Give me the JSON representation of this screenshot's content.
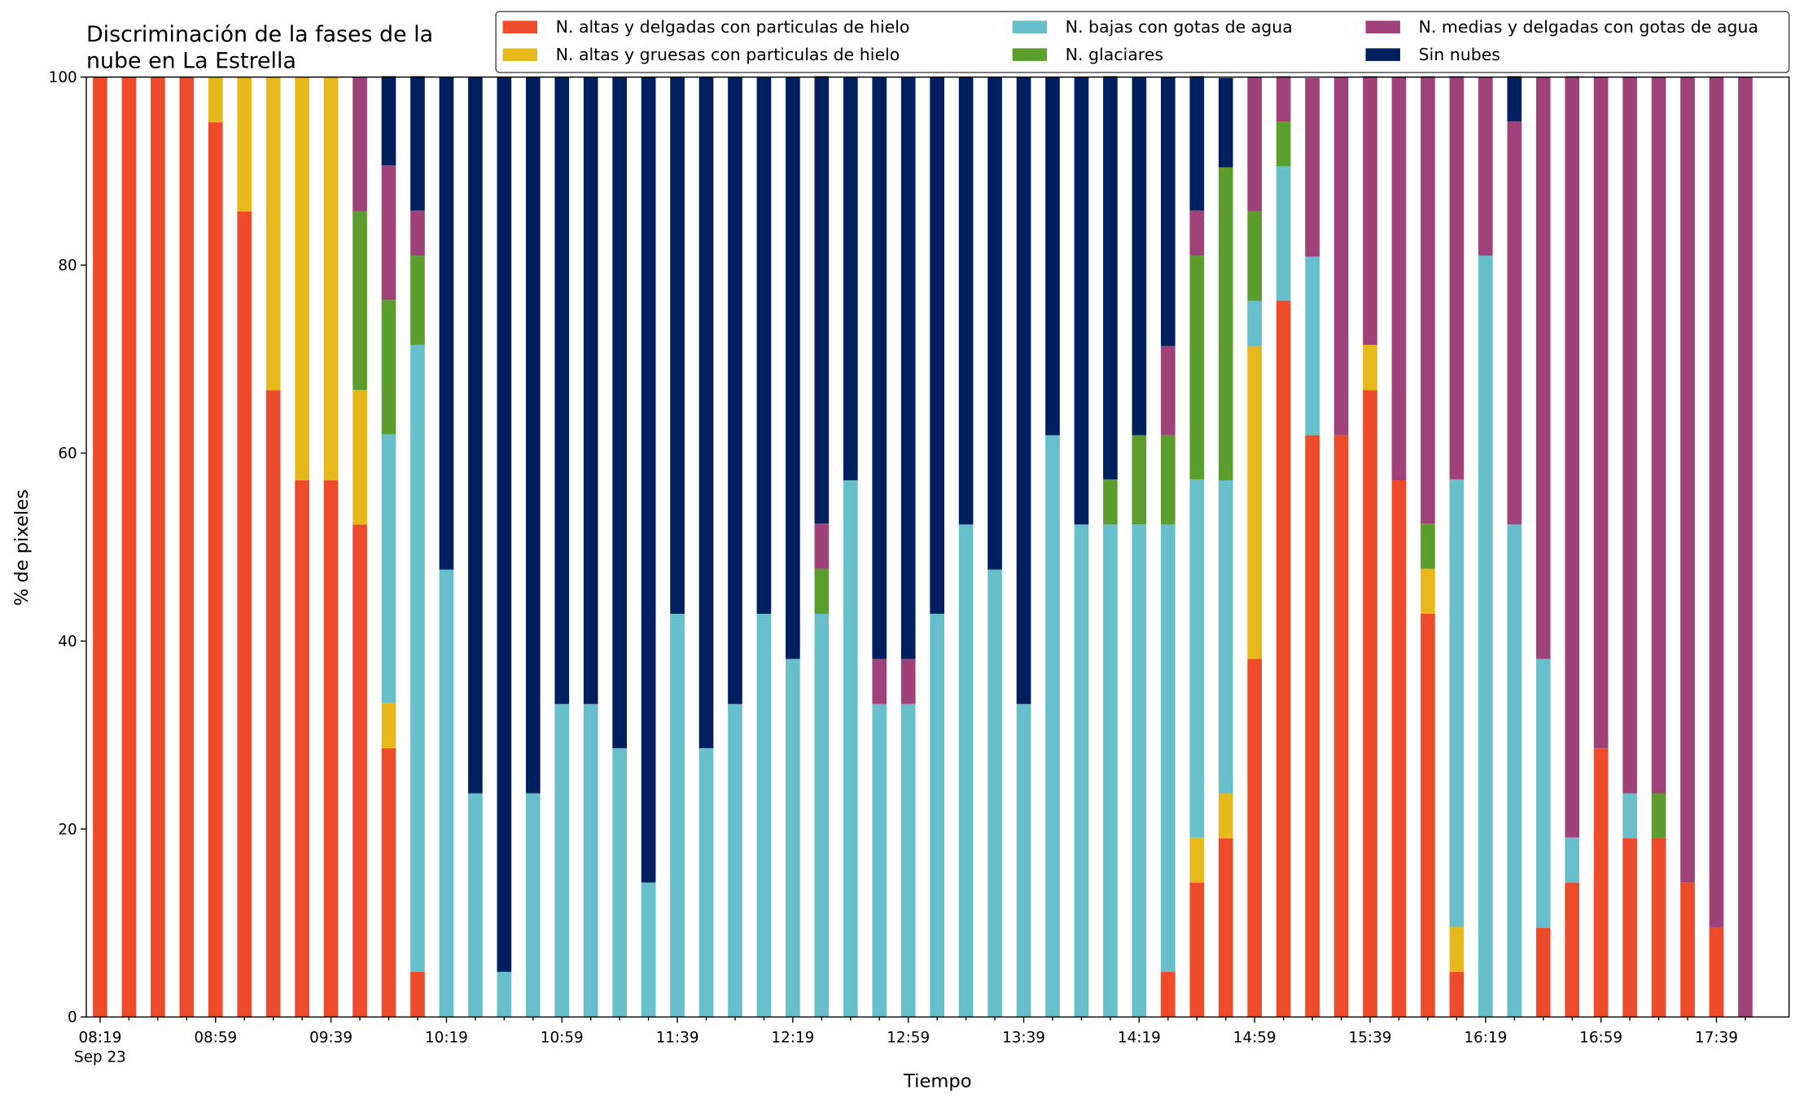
{
  "chart_data": {
    "type": "stacked_bar",
    "title": [
      "Discriminación de la fases de la",
      "nube en La Estrella"
    ],
    "xlabel": "Tiempo",
    "ylabel": "% de pixeles",
    "x_date_label": "Sep 23",
    "categories": [
      "08:19",
      null,
      null,
      null,
      "08:59",
      null,
      null,
      null,
      "09:39",
      null,
      null,
      null,
      "10:19",
      null,
      null,
      null,
      "10:59",
      null,
      null,
      null,
      "11:39",
      null,
      null,
      null,
      "12:19",
      null,
      null,
      null,
      "12:59",
      null,
      null,
      null,
      "13:39",
      null,
      null,
      null,
      "14:19",
      null,
      null,
      null,
      "14:59",
      null,
      null,
      null,
      "15:39",
      null,
      null,
      null,
      "16:19",
      null,
      null,
      null,
      "16:59",
      null,
      null,
      null,
      "17:39",
      null
    ],
    "ylim": [
      0,
      100
    ],
    "yticks": [
      0,
      20,
      40,
      60,
      80,
      100
    ],
    "legend": "upper right",
    "series": [
      {
        "name": "N. altas y delgadas con particulas de hielo",
        "color": "#ee4b2b",
        "values": [
          100,
          100,
          100,
          100,
          95.2,
          85.7,
          66.7,
          57.1,
          57.1,
          52.4,
          28.6,
          4.8,
          0,
          0,
          0,
          0,
          0,
          0,
          0,
          0,
          0,
          0,
          0,
          0,
          0,
          0,
          0,
          0,
          0,
          0,
          0,
          0,
          0,
          0,
          0,
          0,
          0,
          4.8,
          14.3,
          19.0,
          38.1,
          76.2,
          61.9,
          61.9,
          66.7,
          57.1,
          42.9,
          4.8,
          0,
          0,
          9.5,
          14.3,
          28.6,
          19.0,
          19.0,
          14.3,
          9.5,
          0
        ]
      },
      {
        "name": "N. altas y gruesas con particulas de hielo",
        "color": "#e6b819",
        "values": [
          0,
          0,
          0,
          0,
          4.8,
          14.3,
          33.3,
          42.9,
          42.9,
          14.3,
          4.8,
          0,
          0,
          0,
          0,
          0,
          0,
          0,
          0,
          0,
          0,
          0,
          0,
          0,
          0,
          0,
          0,
          0,
          0,
          0,
          0,
          0,
          0,
          0,
          0,
          0,
          0,
          0,
          4.8,
          4.8,
          33.3,
          0,
          0,
          0,
          4.8,
          0,
          4.8,
          4.8,
          0,
          0,
          0,
          0,
          0,
          0,
          0,
          0,
          0,
          0
        ]
      },
      {
        "name": "N. bajas con gotas de agua",
        "color": "#67bfcb",
        "values": [
          0,
          0,
          0,
          0,
          0,
          0,
          0,
          0,
          0,
          0,
          28.6,
          66.7,
          47.6,
          23.8,
          4.8,
          23.8,
          33.3,
          33.3,
          28.6,
          14.3,
          42.9,
          28.6,
          33.3,
          42.9,
          38.1,
          42.9,
          57.1,
          33.3,
          33.3,
          42.9,
          52.4,
          47.6,
          33.3,
          61.9,
          52.4,
          52.4,
          52.4,
          47.6,
          38.1,
          33.3,
          4.8,
          14.3,
          19.0,
          0,
          0,
          0,
          0,
          47.6,
          81.0,
          52.4,
          28.6,
          4.8,
          0,
          4.8,
          0,
          0,
          0,
          0
        ]
      },
      {
        "name": "N. glaciares",
        "color": "#5b9e2e",
        "values": [
          0,
          0,
          0,
          0,
          0,
          0,
          0,
          0,
          0,
          19.0,
          14.3,
          9.5,
          0,
          0,
          0,
          0,
          0,
          0,
          0,
          0,
          0,
          0,
          0,
          0,
          0,
          4.8,
          0,
          0,
          0,
          0,
          0,
          0,
          0,
          0,
          0,
          4.8,
          9.5,
          9.5,
          23.8,
          33.3,
          9.5,
          4.8,
          0,
          0,
          0,
          0,
          4.8,
          0,
          0,
          0,
          0,
          0,
          0,
          0,
          4.8,
          0,
          0,
          0
        ]
      },
      {
        "name": "N. medias y delgadas con gotas de agua",
        "color": "#a0427a",
        "values": [
          0,
          0,
          0,
          0,
          0,
          0,
          0,
          0,
          0,
          14.3,
          14.3,
          4.8,
          0,
          0,
          0,
          0,
          0,
          0,
          0,
          0,
          0,
          0,
          0,
          0,
          0,
          4.8,
          0,
          4.8,
          4.8,
          0,
          0,
          0,
          0,
          0,
          0,
          0,
          0,
          9.5,
          4.8,
          0,
          14.3,
          4.8,
          19.0,
          38.1,
          28.6,
          42.9,
          47.6,
          42.9,
          19.0,
          42.9,
          61.9,
          81.0,
          71.4,
          76.2,
          76.2,
          85.7,
          90.5,
          100
        ]
      },
      {
        "name": "Sin nubes",
        "color": "#001f5f",
        "values": [
          0,
          0,
          0,
          0,
          0,
          0,
          0,
          0,
          0,
          0,
          9.5,
          14.3,
          52.4,
          76.2,
          95.2,
          76.2,
          66.7,
          66.7,
          71.4,
          85.7,
          57.1,
          71.4,
          66.7,
          57.1,
          61.9,
          47.6,
          42.9,
          61.9,
          61.9,
          57.1,
          47.6,
          52.4,
          66.7,
          38.1,
          47.6,
          42.9,
          38.1,
          28.6,
          14.3,
          9.5,
          0,
          0,
          0,
          0,
          0,
          0,
          0,
          0,
          0,
          4.8,
          0,
          0,
          0,
          0,
          0,
          0,
          0,
          0
        ]
      }
    ]
  }
}
